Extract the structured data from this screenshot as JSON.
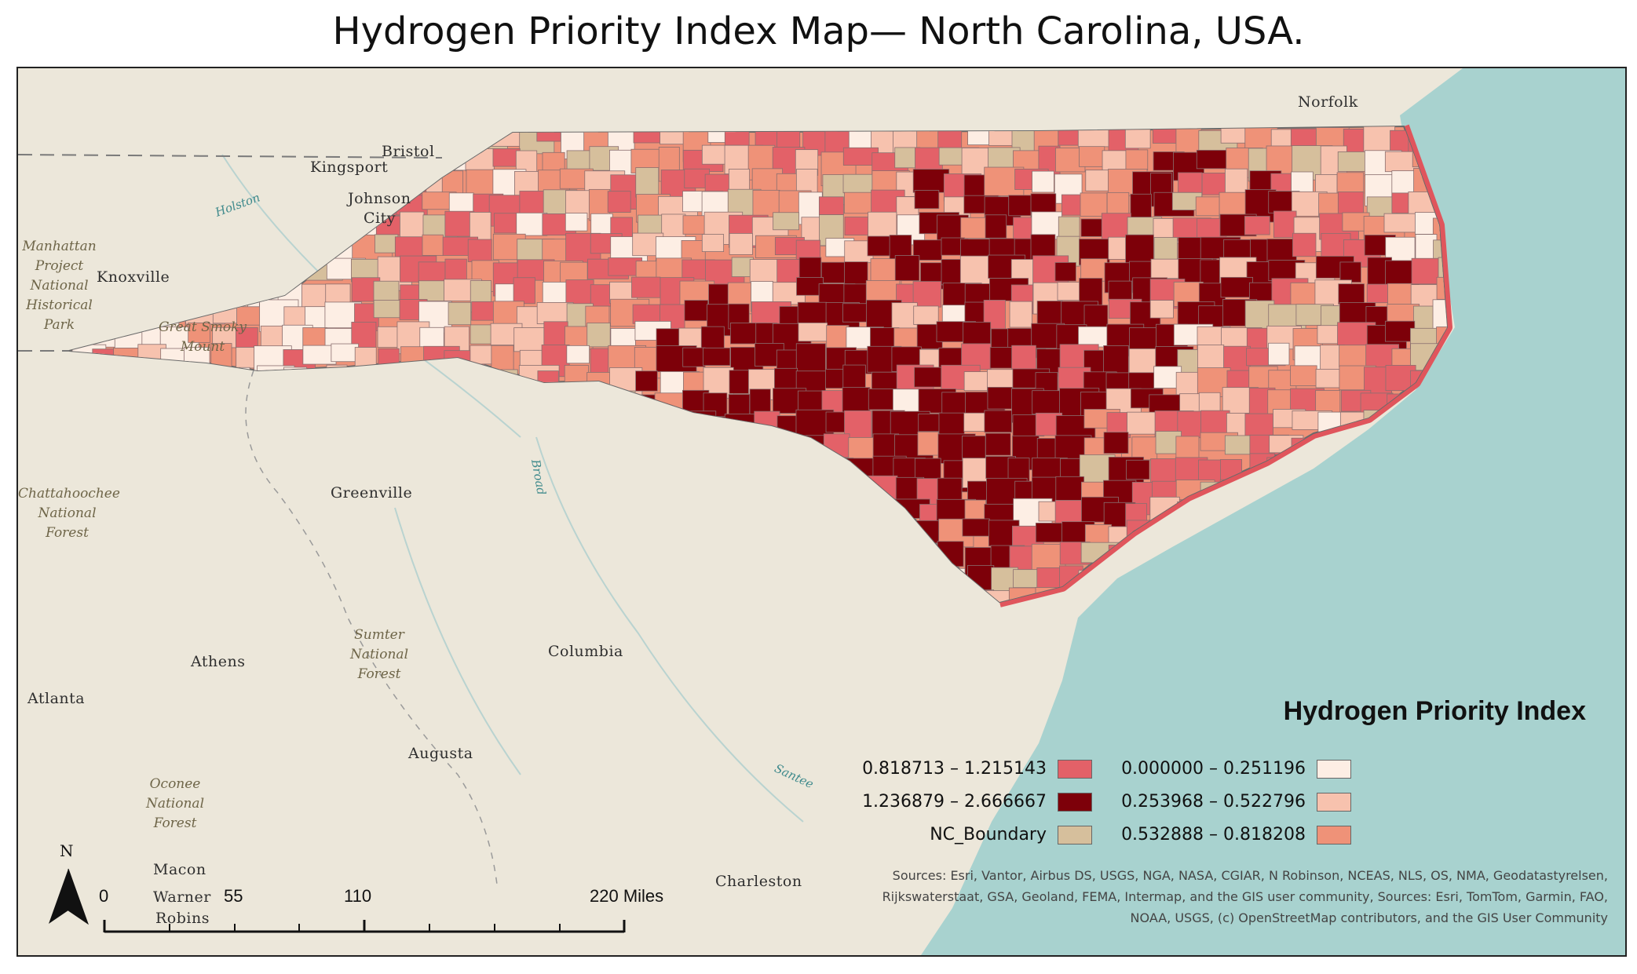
{
  "title": "Hydrogen Priority Index Map— North Carolina, USA.",
  "places": [
    {
      "name": "Norfolk"
    },
    {
      "name": "Bristol"
    },
    {
      "name": "Kingsport"
    },
    {
      "name": "Johnson"
    },
    {
      "name": "City"
    },
    {
      "name": "Knoxville"
    },
    {
      "name": "Greenville"
    },
    {
      "name": "Athens"
    },
    {
      "name": "Columbia"
    },
    {
      "name": "Atlanta"
    },
    {
      "name": "Augusta"
    },
    {
      "name": "Charleston"
    },
    {
      "name": "Macon"
    },
    {
      "name": "Warner"
    },
    {
      "name": "Robins"
    }
  ],
  "parks": [
    {
      "name": "Manhattan\nProject\nNational\nHistorical\nPark"
    },
    {
      "name": "Great Smoky\nMount"
    },
    {
      "name": "Chattahoochee\nNational\nForest"
    },
    {
      "name": "Sumter\nNational\nForest"
    },
    {
      "name": "Oconee\nNational\nForest"
    }
  ],
  "rivers": [
    {
      "name": "Holston"
    },
    {
      "name": "Broad"
    },
    {
      "name": "Santee"
    }
  ],
  "legend": {
    "title": "Hydrogen Priority Index",
    "items": [
      {
        "label": "0.818713 – 1.215143",
        "color": "#e36168"
      },
      {
        "label": "1.236879 – 2.666667",
        "color": "#7d0009"
      },
      {
        "label": "NC_Boundary",
        "color": "#d6bf9c"
      },
      {
        "label": "0.000000 – 0.251196",
        "color": "#fdeee4"
      },
      {
        "label": "0.253968 – 0.522796",
        "color": "#f7c2ae"
      },
      {
        "label": "0.532888 – 0.818208",
        "color": "#ef9278"
      }
    ]
  },
  "sources": "Sources: Esri, Vantor, Airbus DS, USGS, NGA, NASA, CGIAR, N Robinson, NCEAS, NLS, OS, NMA, Geodatastyrelsen, Rijkswaterstaat, GSA, Geoland, FEMA, Intermap, and the GIS user community, Sources: Esri, TomTom, Garmin, FAO, NOAA, USGS, (c) OpenStreetMap contributors, and the GIS User Community",
  "scale_bar": {
    "ticks": [
      "0",
      "55",
      "110",
      "220 Miles"
    ]
  },
  "north_arrow": "N",
  "colors": {
    "land": "#ece7da",
    "ocean": "#a8d2cf",
    "outline": "#e0555c"
  }
}
